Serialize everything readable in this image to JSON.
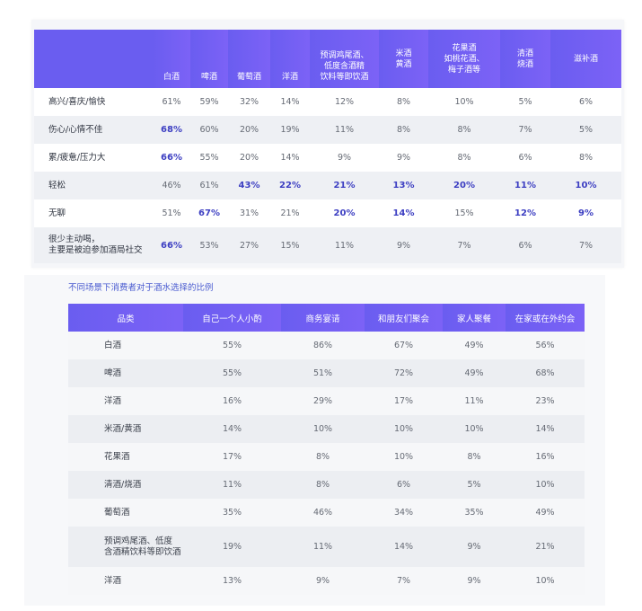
{
  "chart_data": [
    {
      "type": "table",
      "columns": [
        "",
        "白酒",
        "啤酒",
        "葡萄酒",
        "洋酒",
        "预调鸡尾酒、\n低度含酒精\n饮料等即饮酒",
        "米酒\n黄酒",
        "花果酒\n如桃花酒、\n梅子酒等",
        "清酒\n烧酒",
        "滋补酒"
      ],
      "rows": [
        {
          "label": "高兴/喜庆/愉快",
          "values": [
            "61%",
            "59%",
            "32%",
            "14%",
            "12%",
            "8%",
            "10%",
            "5%",
            "6%"
          ],
          "highlight": [
            false,
            false,
            false,
            false,
            false,
            false,
            false,
            false,
            false
          ]
        },
        {
          "label": "伤心/心情不佳",
          "values": [
            "68%",
            "60%",
            "20%",
            "19%",
            "11%",
            "8%",
            "8%",
            "7%",
            "5%"
          ],
          "highlight": [
            true,
            false,
            false,
            false,
            false,
            false,
            false,
            false,
            false
          ]
        },
        {
          "label": "累/疲惫/压力大",
          "values": [
            "66%",
            "55%",
            "20%",
            "14%",
            "9%",
            "9%",
            "8%",
            "6%",
            "8%"
          ],
          "highlight": [
            true,
            false,
            false,
            false,
            false,
            false,
            false,
            false,
            false
          ]
        },
        {
          "label": "轻松",
          "values": [
            "46%",
            "61%",
            "43%",
            "22%",
            "21%",
            "13%",
            "20%",
            "11%",
            "10%"
          ],
          "highlight": [
            false,
            false,
            true,
            true,
            true,
            true,
            true,
            true,
            true
          ]
        },
        {
          "label": "无聊",
          "values": [
            "51%",
            "67%",
            "31%",
            "21%",
            "20%",
            "14%",
            "15%",
            "12%",
            "9%"
          ],
          "highlight": [
            false,
            true,
            false,
            false,
            true,
            true,
            false,
            true,
            true
          ]
        },
        {
          "label": "很少主动喝，\n主要是被迫参加酒局社交",
          "values": [
            "66%",
            "53%",
            "27%",
            "15%",
            "11%",
            "9%",
            "7%",
            "6%",
            "7%"
          ],
          "highlight": [
            true,
            false,
            false,
            false,
            false,
            false,
            false,
            false,
            false
          ]
        }
      ]
    },
    {
      "type": "table",
      "title": "不同场景下消费者对于酒水选择的比例",
      "columns": [
        "品类",
        "自己一个人小酌",
        "商务宴请",
        "和朋友们聚会",
        "家人聚餐",
        "在家或在外约会"
      ],
      "rows": [
        {
          "label": "白酒",
          "values": [
            "55%",
            "86%",
            "67%",
            "49%",
            "56%"
          ]
        },
        {
          "label": "啤酒",
          "values": [
            "55%",
            "51%",
            "72%",
            "49%",
            "68%"
          ]
        },
        {
          "label": "洋酒",
          "values": [
            "16%",
            "29%",
            "17%",
            "11%",
            "23%"
          ]
        },
        {
          "label": "米酒/黄酒",
          "values": [
            "14%",
            "10%",
            "10%",
            "10%",
            "14%"
          ]
        },
        {
          "label": "花果酒",
          "values": [
            "17%",
            "8%",
            "10%",
            "8%",
            "16%"
          ]
        },
        {
          "label": "清酒/烧酒",
          "values": [
            "11%",
            "8%",
            "6%",
            "5%",
            "10%"
          ]
        },
        {
          "label": "葡萄酒",
          "values": [
            "35%",
            "46%",
            "34%",
            "35%",
            "49%"
          ]
        },
        {
          "label": "预调鸡尾酒、低度\n含酒精饮料等即饮酒",
          "values": [
            "19%",
            "11%",
            "14%",
            "9%",
            "21%"
          ]
        },
        {
          "label": "洋酒",
          "values": [
            "13%",
            "9%",
            "7%",
            "9%",
            "10%"
          ]
        }
      ]
    }
  ],
  "colors": {
    "header": "#6a5df0",
    "highlight": "#3d3fc2",
    "title": "#4a5bd0"
  }
}
